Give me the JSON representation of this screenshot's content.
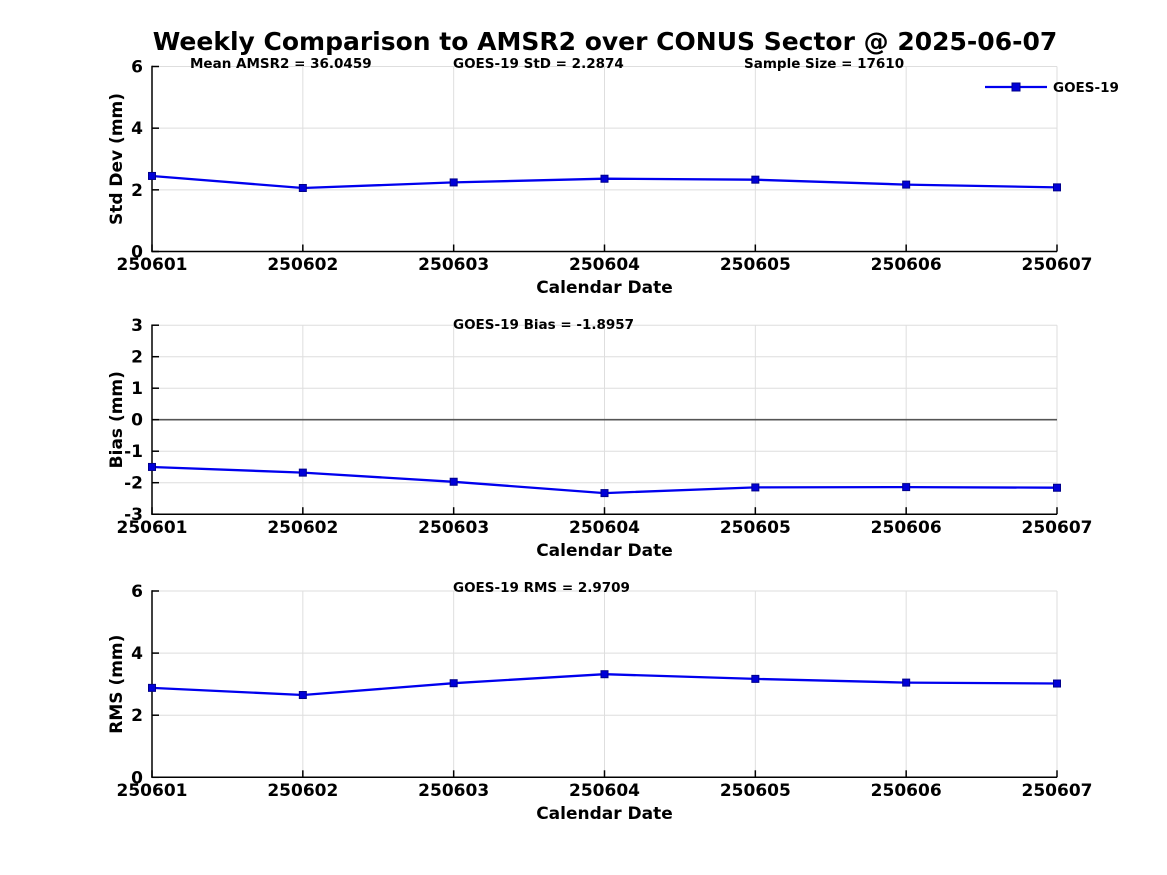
{
  "figure_title": "Weekly Comparison to AMSR2 over CONUS Sector @ 2025-06-07",
  "colors": {
    "line": "#0000EE",
    "marker_fill": "#0000D8",
    "marker_edge": "#00008B",
    "grid": "#DEDEDE",
    "zero_line": "#555555",
    "axis": "#000000",
    "text": "#000000",
    "background": "#FFFFFF"
  },
  "legend": {
    "label": "GOES-19",
    "position": "top-right"
  },
  "chart_data": [
    {
      "type": "line",
      "id": "stddev",
      "annotations": [
        "Mean AMSR2 = 36.0459",
        "GOES-19 StD = 2.2874",
        "Sample Size = 17610"
      ],
      "categories": [
        "250601",
        "250602",
        "250603",
        "250604",
        "250605",
        "250606",
        "250607"
      ],
      "series": [
        {
          "name": "GOES-19",
          "values": [
            2.45,
            2.06,
            2.24,
            2.36,
            2.33,
            2.17,
            2.08
          ]
        }
      ],
      "xlabel": "Calendar Date",
      "ylabel": "Std Dev (mm)",
      "ylim": [
        0,
        6
      ],
      "yticks": [
        0,
        2,
        4,
        6
      ],
      "zero_line": false,
      "grid": true,
      "show_legend": true
    },
    {
      "type": "line",
      "id": "bias",
      "annotations": [
        "GOES-19 Bias  = -1.8957"
      ],
      "categories": [
        "250601",
        "250602",
        "250603",
        "250604",
        "250605",
        "250606",
        "250607"
      ],
      "series": [
        {
          "name": "GOES-19",
          "values": [
            -1.5,
            -1.68,
            -1.97,
            -2.33,
            -2.15,
            -2.14,
            -2.16
          ]
        }
      ],
      "xlabel": "Calendar Date",
      "ylabel": "Bias (mm)",
      "ylim": [
        -3,
        3
      ],
      "yticks": [
        -3,
        -2,
        -1,
        0,
        1,
        2,
        3
      ],
      "zero_line": true,
      "grid": true,
      "show_legend": false
    },
    {
      "type": "line",
      "id": "rms",
      "annotations": [
        "GOES-19 RMS = 2.9709"
      ],
      "categories": [
        "250601",
        "250602",
        "250603",
        "250604",
        "250605",
        "250606",
        "250607"
      ],
      "series": [
        {
          "name": "GOES-19",
          "values": [
            2.88,
            2.65,
            3.03,
            3.32,
            3.17,
            3.05,
            3.02
          ]
        }
      ],
      "xlabel": "Calendar Date",
      "ylabel": "RMS (mm)",
      "ylim": [
        0,
        6
      ],
      "yticks": [
        0,
        2,
        4,
        6
      ],
      "zero_line": false,
      "grid": true,
      "show_legend": false
    }
  ]
}
